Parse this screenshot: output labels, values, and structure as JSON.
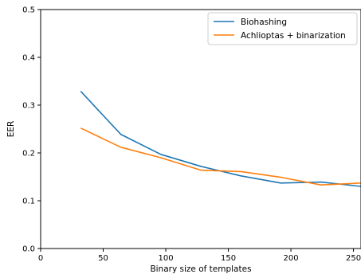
{
  "chart_data": {
    "type": "line",
    "title": "",
    "xlabel": "Binary size of templates",
    "ylabel": "EER",
    "xlim": [
      0,
      256
    ],
    "ylim": [
      0.0,
      0.5
    ],
    "xticks": [
      0,
      50,
      100,
      150,
      200,
      250
    ],
    "xtick_labels": [
      "0",
      "50",
      "100",
      "150",
      "200",
      "250"
    ],
    "yticks": [
      0.0,
      0.1,
      0.2,
      0.3,
      0.4,
      0.5
    ],
    "ytick_labels": [
      "0.0",
      "0.1",
      "0.2",
      "0.3",
      "0.4",
      "0.5"
    ],
    "grid": false,
    "legend_position": "top-right",
    "series": [
      {
        "name": "Biohashing",
        "color": "#1f77b4",
        "x": [
          32,
          64,
          96,
          128,
          160,
          192,
          224,
          256
        ],
        "y": [
          0.329,
          0.239,
          0.197,
          0.172,
          0.152,
          0.137,
          0.139,
          0.13
        ]
      },
      {
        "name": "Achlioptas + binarization",
        "color": "#ff7f0e",
        "x": [
          32,
          64,
          96,
          128,
          160,
          192,
          224,
          256
        ],
        "y": [
          0.252,
          0.212,
          0.19,
          0.164,
          0.161,
          0.149,
          0.133,
          0.137
        ]
      }
    ]
  }
}
